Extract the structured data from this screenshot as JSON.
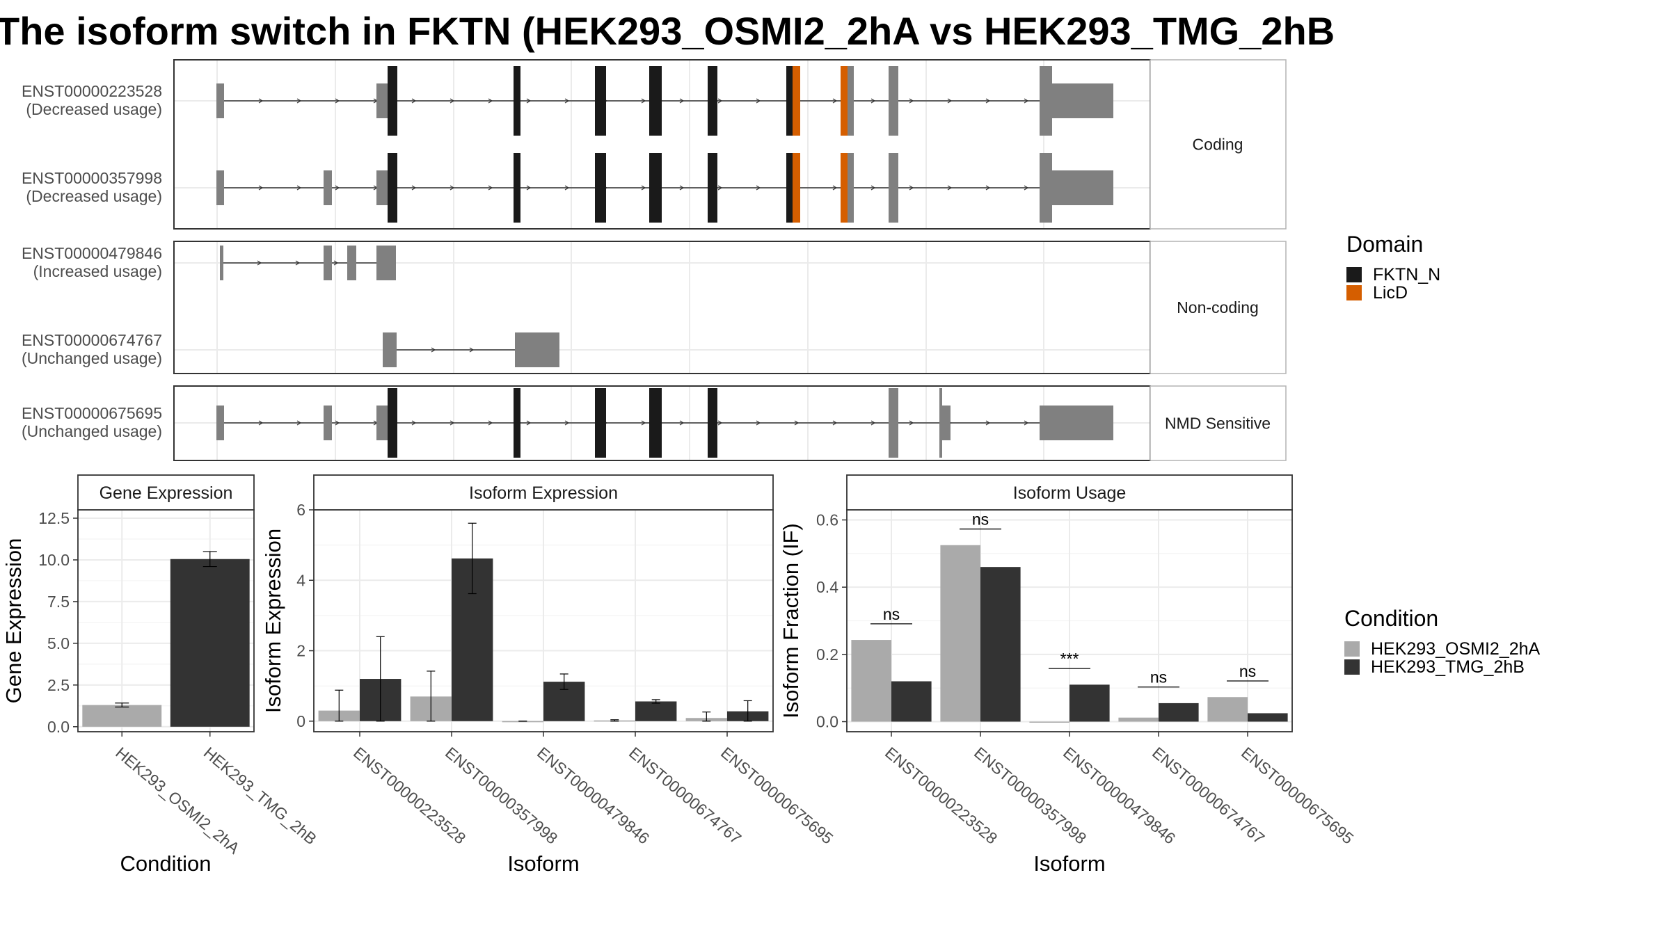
{
  "title": "The isoform switch in FKTN (HEK293_OSMI2_2hA vs HEK293_TMG_2hB",
  "colors": {
    "fktn_n": "#1a1a1a",
    "licd": "#d55e00",
    "noncoding_exon": "#808080",
    "cond_a": "#aaaaaa",
    "cond_b": "#333333"
  },
  "structure": {
    "isoforms": [
      {
        "id": "ENST00000223528",
        "usage": "(Decreased usage)",
        "group": "Coding"
      },
      {
        "id": "ENST00000357998",
        "usage": "(Decreased usage)",
        "group": "Coding"
      },
      {
        "id": "ENST00000479846",
        "usage": "(Increased usage)",
        "group": "Non-coding"
      },
      {
        "id": "ENST00000674767",
        "usage": "(Unchanged usage)",
        "group": "Non-coding"
      },
      {
        "id": "ENST00000675695",
        "usage": "(Unchanged usage)",
        "group": "NMD Sensitive"
      }
    ],
    "facets": [
      "Coding",
      "Non-coding",
      "NMD Sensitive"
    ]
  },
  "legend_domain": {
    "title": "Domain",
    "items": [
      "FKTN_N",
      "LicD"
    ]
  },
  "legend_condition": {
    "title": "Condition",
    "items": [
      "HEK293_OSMI2_2hA",
      "HEK293_TMG_2hB"
    ]
  },
  "chart_data": [
    {
      "type": "bar",
      "title": "Gene Expression",
      "xlabel": "Condition",
      "ylabel": "Gene Expression",
      "categories": [
        "HEK293_OSMI2_2hA",
        "HEK293_TMG_2hB"
      ],
      "values": [
        1.3,
        10.05
      ],
      "error": [
        0.12,
        0.45
      ],
      "ylim": [
        -0.3,
        13.0
      ],
      "yticks": [
        "0.0",
        "2.5",
        "5.0",
        "7.5",
        "10.0",
        "12.5"
      ],
      "grid": true
    },
    {
      "type": "bar",
      "title": "Isoform Expression",
      "xlabel": "Isoform",
      "ylabel": "Isoform Expression",
      "categories": [
        "ENST00000223528",
        "ENST00000357998",
        "ENST00000479846",
        "ENST00000674767",
        "ENST00000675695"
      ],
      "series": [
        {
          "name": "HEK293_OSMI2_2hA",
          "values": [
            0.3,
            0.7,
            0.0,
            0.02,
            0.09
          ],
          "error": [
            0.58,
            0.72,
            0.0,
            0.02,
            0.17
          ]
        },
        {
          "name": "HEK293_TMG_2hB",
          "values": [
            1.2,
            4.62,
            1.12,
            0.56,
            0.28
          ],
          "error": [
            1.2,
            1.0,
            0.22,
            0.05,
            0.3
          ]
        }
      ],
      "ylim": [
        -0.3,
        6.0
      ],
      "yticks": [
        "0",
        "2",
        "4",
        "6"
      ],
      "grid": true
    },
    {
      "type": "bar",
      "title": "Isoform Usage",
      "xlabel": "Isoform",
      "ylabel": "Isoform Fraction (IF)",
      "categories": [
        "ENST00000223528",
        "ENST00000357998",
        "ENST00000479846",
        "ENST00000674767",
        "ENST00000675695"
      ],
      "series": [
        {
          "name": "HEK293_OSMI2_2hA",
          "values": [
            0.243,
            0.525,
            0.0,
            0.012,
            0.073
          ]
        },
        {
          "name": "HEK293_TMG_2hB",
          "values": [
            0.12,
            0.46,
            0.11,
            0.055,
            0.025
          ]
        }
      ],
      "significance": [
        "ns",
        "ns",
        "***",
        "ns",
        "ns"
      ],
      "ylim": [
        -0.03,
        0.63
      ],
      "yticks": [
        "0.0",
        "0.2",
        "0.4",
        "0.6"
      ],
      "grid": true
    }
  ]
}
